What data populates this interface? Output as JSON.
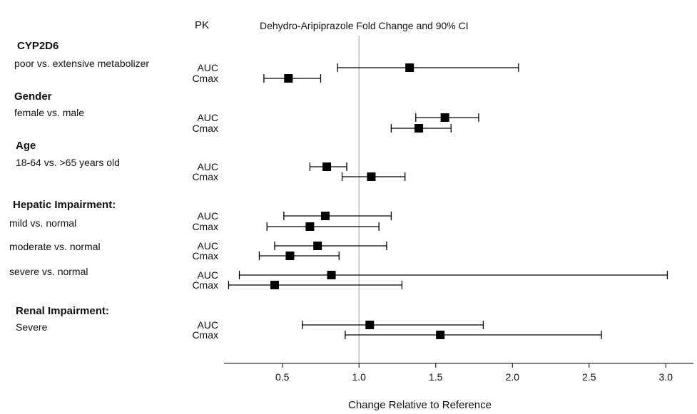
{
  "chart_data": {
    "type": "forest",
    "title": "Dehydro-Aripiprazole Fold Change and 90% CI",
    "column_header": "PK",
    "xlabel": "Change Relative to Reference",
    "ylabel": "",
    "xlim": [
      0.12,
      3.18
    ],
    "xticks": [
      0.5,
      1.0,
      1.5,
      2.0,
      2.5,
      3.0
    ],
    "xtick_labels": [
      "0.5",
      "1.0",
      "1.5",
      "2.0",
      "2.5",
      "3.0"
    ],
    "reference_line": 1.0,
    "grid": false,
    "groups": [
      {
        "heading": "CYP2D6",
        "comparisons": [
          {
            "label": "poor vs. extensive metabolizer",
            "rows": [
              {
                "pk": "AUC",
                "estimate": 1.33,
                "ci_low": 0.86,
                "ci_high": 2.04
              },
              {
                "pk": "Cmax",
                "estimate": 0.54,
                "ci_low": 0.38,
                "ci_high": 0.75
              }
            ]
          }
        ]
      },
      {
        "heading": "Gender",
        "comparisons": [
          {
            "label": "female vs. male",
            "rows": [
              {
                "pk": "AUC",
                "estimate": 1.56,
                "ci_low": 1.37,
                "ci_high": 1.78
              },
              {
                "pk": "Cmax",
                "estimate": 1.39,
                "ci_low": 1.21,
                "ci_high": 1.6
              }
            ]
          }
        ]
      },
      {
        "heading": "Age",
        "comparisons": [
          {
            "label": "18-64 vs. >65 years old",
            "rows": [
              {
                "pk": "AUC",
                "estimate": 0.79,
                "ci_low": 0.68,
                "ci_high": 0.92
              },
              {
                "pk": "Cmax",
                "estimate": 1.08,
                "ci_low": 0.89,
                "ci_high": 1.3
              }
            ]
          }
        ]
      },
      {
        "heading": "Hepatic Impairment:",
        "comparisons": [
          {
            "label": "mild vs. normal",
            "rows": [
              {
                "pk": "AUC",
                "estimate": 0.78,
                "ci_low": 0.51,
                "ci_high": 1.21
              },
              {
                "pk": "Cmax",
                "estimate": 0.68,
                "ci_low": 0.4,
                "ci_high": 1.13
              }
            ]
          },
          {
            "label": "moderate vs. normal",
            "rows": [
              {
                "pk": "AUC",
                "estimate": 0.73,
                "ci_low": 0.45,
                "ci_high": 1.18
              },
              {
                "pk": "Cmax",
                "estimate": 0.55,
                "ci_low": 0.35,
                "ci_high": 0.87
              }
            ]
          },
          {
            "label": "severe vs. normal",
            "rows": [
              {
                "pk": "AUC",
                "estimate": 0.82,
                "ci_low": 0.22,
                "ci_high": 3.01
              },
              {
                "pk": "Cmax",
                "estimate": 0.45,
                "ci_low": 0.15,
                "ci_high": 1.28
              }
            ]
          }
        ]
      },
      {
        "heading": "Renal Impairment:",
        "comparisons": [
          {
            "label": "Severe",
            "rows": [
              {
                "pk": "AUC",
                "estimate": 1.07,
                "ci_low": 0.63,
                "ci_high": 1.81
              },
              {
                "pk": "Cmax",
                "estimate": 1.53,
                "ci_low": 0.91,
                "ci_high": 2.58
              }
            ]
          }
        ]
      }
    ]
  },
  "colors": {
    "marker": "#000000",
    "reference_line": "#bdbdbd",
    "axis": "#000000"
  }
}
